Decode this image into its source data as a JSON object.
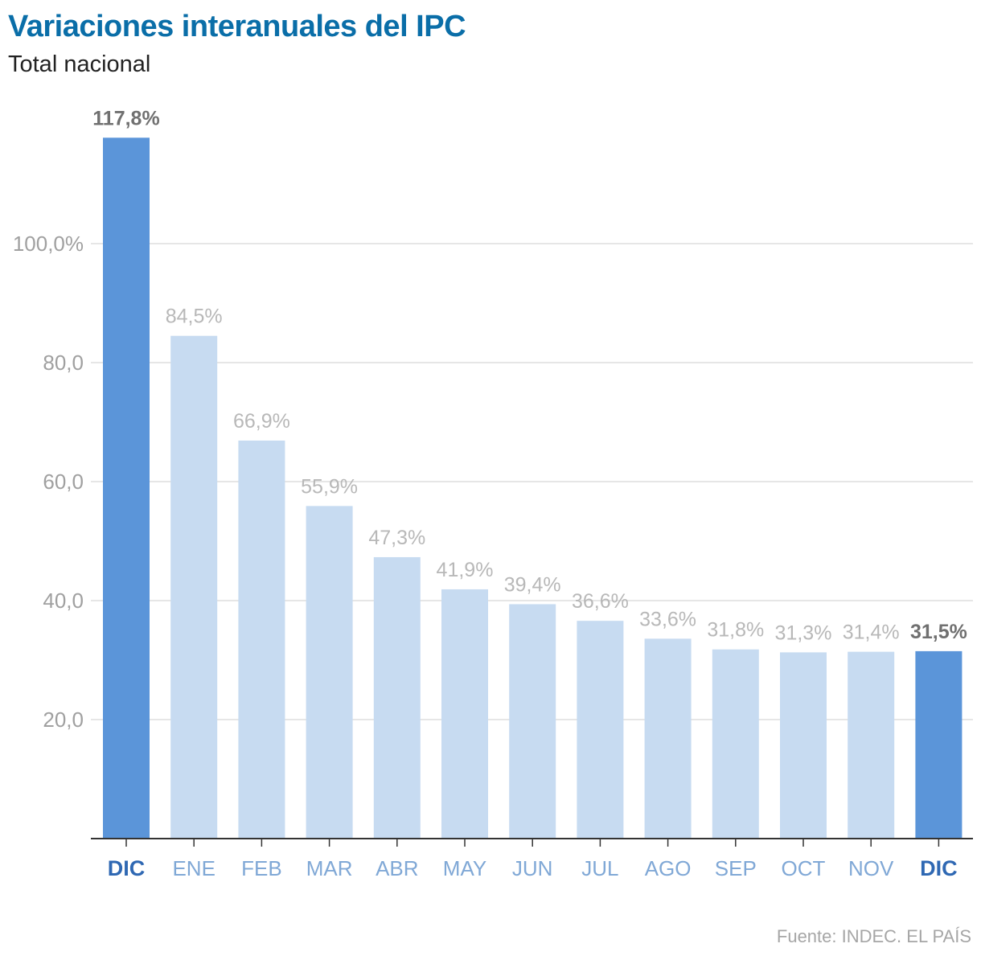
{
  "title": "Variaciones interanuales del IPC",
  "subtitle": "Total nacional",
  "source": "Fuente: INDEC. EL PAÍS",
  "colors": {
    "title": "#0a6ea8",
    "highlight_bar": "#5b95d9",
    "normal_bar": "#c7dbf1",
    "highlight_label": "#707070",
    "normal_label": "#b8b8b8",
    "highlight_tick": "#2f68b3",
    "normal_tick": "#80a8d6",
    "axis_label": "#a0a0a0",
    "grid": "#dddddd"
  },
  "chart_data": {
    "type": "bar",
    "title": "Variaciones interanuales del IPC",
    "subtitle": "Total nacional",
    "xlabel": "",
    "ylabel": "",
    "ylim": [
      0,
      120
    ],
    "yticks": [
      20,
      40,
      60,
      80,
      100
    ],
    "ytick_labels": [
      "20,0",
      "40,0",
      "60,0",
      "80,0",
      "100,0%"
    ],
    "categories": [
      "DIC",
      "ENE",
      "FEB",
      "MAR",
      "ABR",
      "MAY",
      "JUN",
      "JUL",
      "AGO",
      "SEP",
      "OCT",
      "NOV",
      "DIC"
    ],
    "values": [
      117.8,
      84.5,
      66.9,
      55.9,
      47.3,
      41.9,
      39.4,
      36.6,
      33.6,
      31.8,
      31.3,
      31.4,
      31.5
    ],
    "value_labels": [
      "117,8%",
      "84,5%",
      "66,9%",
      "55,9%",
      "47,3%",
      "41,9%",
      "39,4%",
      "36,6%",
      "33,6%",
      "31,8%",
      "31,3%",
      "31,4%",
      "31,5%"
    ],
    "highlighted": [
      true,
      false,
      false,
      false,
      false,
      false,
      false,
      false,
      false,
      false,
      false,
      false,
      true
    ],
    "grid": true
  }
}
